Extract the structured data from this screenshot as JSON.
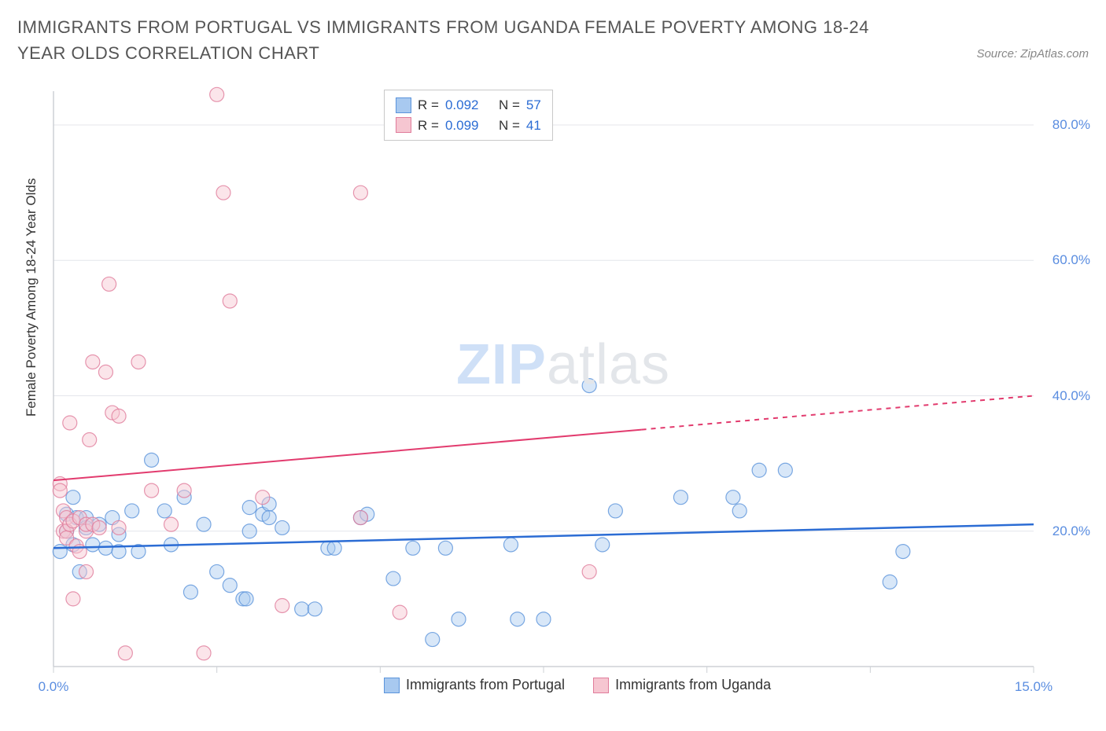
{
  "title": "IMMIGRANTS FROM PORTUGAL VS IMMIGRANTS FROM UGANDA FEMALE POVERTY AMONG 18-24 YEAR OLDS CORRELATION CHART",
  "source_label": "Source: ZipAtlas.com",
  "ylabel": "Female Poverty Among 18-24 Year Olds",
  "watermark_zip": "ZIP",
  "watermark_atlas": "atlas",
  "top_legend": {
    "series": [
      {
        "text_r": "R =",
        "r": "0.092",
        "text_n": "N =",
        "n": "57"
      },
      {
        "text_r": "R =",
        "r": "0.099",
        "text_n": "N =",
        "n": "41"
      }
    ]
  },
  "bottom_legend": {
    "items": [
      {
        "label": "Immigrants from Portugal"
      },
      {
        "label": "Immigrants from Uganda"
      }
    ]
  },
  "chart": {
    "type": "scatter",
    "background_color": "#ffffff",
    "grid_color": "#e4e6eb",
    "axis_color": "#cdd0d5",
    "xlim": [
      0,
      15
    ],
    "ylim": [
      0,
      85
    ],
    "xticks": [
      0,
      2.5,
      5,
      7.5,
      10,
      12.5,
      15
    ],
    "xtick_labels": [
      "0.0%",
      "",
      "",
      "",
      "",
      "",
      "15.0%"
    ],
    "yticks": [
      20,
      40,
      60,
      80
    ],
    "ytick_labels": [
      "20.0%",
      "40.0%",
      "60.0%",
      "80.0%"
    ],
    "tick_label_color": "#5a8de0",
    "tick_label_fontsize": 17,
    "marker_radius": 9,
    "marker_opacity": 0.45,
    "series": [
      {
        "name": "portugal",
        "marker_fill": "#a8c9f0",
        "marker_stroke": "#5b94db",
        "trend_color": "#2b6cd4",
        "trend_width": 2.5,
        "trend_dash_after": 15,
        "trend": {
          "x1": 0,
          "y1": 17.5,
          "x2": 15,
          "y2": 21
        },
        "points": [
          [
            0.1,
            17
          ],
          [
            0.2,
            20
          ],
          [
            0.2,
            22.5
          ],
          [
            0.3,
            18
          ],
          [
            0.3,
            25
          ],
          [
            0.35,
            22
          ],
          [
            0.4,
            14
          ],
          [
            0.5,
            22
          ],
          [
            0.5,
            20.5
          ],
          [
            0.6,
            18
          ],
          [
            0.7,
            21
          ],
          [
            0.8,
            17.5
          ],
          [
            0.9,
            22
          ],
          [
            1.0,
            17
          ],
          [
            1.0,
            19.5
          ],
          [
            1.2,
            23
          ],
          [
            1.3,
            17
          ],
          [
            1.5,
            30.5
          ],
          [
            1.7,
            23
          ],
          [
            1.8,
            18
          ],
          [
            2.0,
            25
          ],
          [
            2.1,
            11
          ],
          [
            2.3,
            21
          ],
          [
            2.5,
            14
          ],
          [
            2.7,
            12
          ],
          [
            2.9,
            10
          ],
          [
            2.95,
            10
          ],
          [
            3.0,
            23.5
          ],
          [
            3.0,
            20
          ],
          [
            3.2,
            22.5
          ],
          [
            3.3,
            24
          ],
          [
            3.3,
            22
          ],
          [
            3.5,
            20.5
          ],
          [
            3.8,
            8.5
          ],
          [
            4.0,
            8.5
          ],
          [
            4.2,
            17.5
          ],
          [
            4.3,
            17.5
          ],
          [
            4.7,
            22
          ],
          [
            4.8,
            22.5
          ],
          [
            5.2,
            13
          ],
          [
            5.5,
            17.5
          ],
          [
            5.8,
            4
          ],
          [
            6.0,
            17.5
          ],
          [
            6.2,
            7
          ],
          [
            7.0,
            18
          ],
          [
            7.1,
            7
          ],
          [
            7.5,
            7
          ],
          [
            8.2,
            41.5
          ],
          [
            8.4,
            18
          ],
          [
            8.6,
            23
          ],
          [
            9.6,
            25
          ],
          [
            10.4,
            25
          ],
          [
            10.5,
            23
          ],
          [
            10.8,
            29
          ],
          [
            11.2,
            29
          ],
          [
            12.8,
            12.5
          ],
          [
            13.0,
            17
          ]
        ]
      },
      {
        "name": "uganda",
        "marker_fill": "#f6c6d1",
        "marker_stroke": "#e07c9b",
        "trend_color": "#e23b6e",
        "trend_width": 2,
        "trend_dash_after": 9,
        "trend": {
          "x1": 0,
          "y1": 27.5,
          "x2": 15,
          "y2": 40
        },
        "points": [
          [
            0.1,
            27
          ],
          [
            0.1,
            26
          ],
          [
            0.15,
            23
          ],
          [
            0.15,
            20
          ],
          [
            0.2,
            22
          ],
          [
            0.2,
            20
          ],
          [
            0.2,
            19
          ],
          [
            0.25,
            36
          ],
          [
            0.25,
            21
          ],
          [
            0.3,
            21.5
          ],
          [
            0.3,
            10
          ],
          [
            0.35,
            17.8
          ],
          [
            0.4,
            17
          ],
          [
            0.4,
            22
          ],
          [
            0.5,
            14
          ],
          [
            0.5,
            20
          ],
          [
            0.5,
            21
          ],
          [
            0.55,
            33.5
          ],
          [
            0.6,
            45
          ],
          [
            0.6,
            21
          ],
          [
            0.7,
            20.5
          ],
          [
            0.8,
            43.5
          ],
          [
            0.85,
            56.5
          ],
          [
            0.9,
            37.5
          ],
          [
            1.0,
            20.5
          ],
          [
            1.0,
            37
          ],
          [
            1.1,
            2
          ],
          [
            1.3,
            45
          ],
          [
            1.5,
            26
          ],
          [
            1.8,
            21
          ],
          [
            2.0,
            26
          ],
          [
            2.3,
            2
          ],
          [
            2.5,
            84.5
          ],
          [
            2.6,
            70
          ],
          [
            2.7,
            54
          ],
          [
            3.2,
            25
          ],
          [
            3.5,
            9
          ],
          [
            4.7,
            70
          ],
          [
            4.7,
            22
          ],
          [
            5.3,
            8
          ],
          [
            8.2,
            14
          ]
        ]
      }
    ]
  }
}
